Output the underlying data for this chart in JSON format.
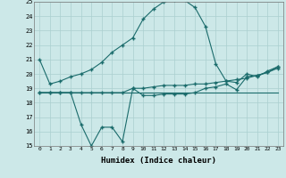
{
  "xlabel": "Humidex (Indice chaleur)",
  "xlim": [
    -0.5,
    23.5
  ],
  "ylim": [
    15,
    25
  ],
  "yticks": [
    15,
    16,
    17,
    18,
    19,
    20,
    21,
    22,
    23,
    24,
    25
  ],
  "xticks": [
    0,
    1,
    2,
    3,
    4,
    5,
    6,
    7,
    8,
    9,
    10,
    11,
    12,
    13,
    14,
    15,
    16,
    17,
    18,
    19,
    20,
    21,
    22,
    23
  ],
  "bg_color": "#cce8e8",
  "grid_color": "#aacfcf",
  "line_color": "#1a6b6b",
  "series1": [
    21.0,
    19.3,
    19.5,
    19.8,
    20.0,
    20.3,
    20.8,
    21.5,
    22.0,
    22.5,
    23.8,
    24.5,
    25.0,
    25.1,
    25.1,
    24.6,
    23.3,
    20.7,
    19.5,
    19.4,
    20.0,
    19.8,
    20.2,
    20.5
  ],
  "series2": [
    18.7,
    18.7,
    18.7,
    18.7,
    18.7,
    18.7,
    18.7,
    18.7,
    18.7,
    19.0,
    19.0,
    19.1,
    19.2,
    19.2,
    19.2,
    19.3,
    19.3,
    19.4,
    19.5,
    19.6,
    19.7,
    19.9,
    20.1,
    20.4
  ],
  "series3": [
    18.7,
    18.7,
    18.7,
    18.7,
    16.5,
    15.0,
    16.3,
    16.3,
    15.3,
    19.0,
    18.5,
    18.5,
    18.6,
    18.6,
    18.6,
    18.7,
    19.0,
    19.1,
    19.3,
    18.9,
    19.8,
    19.9,
    20.1,
    20.5
  ],
  "series4": [
    18.7,
    18.7,
    18.7,
    18.7,
    18.7,
    18.7,
    18.7,
    18.7,
    18.7,
    18.7,
    18.7,
    18.7,
    18.7,
    18.7,
    18.7,
    18.7,
    18.7,
    18.7,
    18.7,
    18.7,
    18.7,
    18.7,
    18.7,
    18.7
  ]
}
